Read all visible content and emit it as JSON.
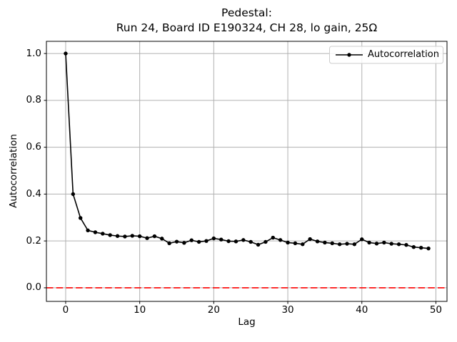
{
  "figure": {
    "title_line1": "Pedestal:",
    "title_line2": "Run 24, Board ID E190324, CH 28, lo gain, 25Ω",
    "xlabel": "Lag",
    "ylabel": "Autocorrelation",
    "legend_label": "Autocorrelation",
    "colors": {
      "line": "#000000",
      "zero_line": "#ff0000",
      "grid": "#b0b0b0",
      "frame": "#000000",
      "background": "#ffffff",
      "legend_border": "#cccccc",
      "text": "#000000"
    }
  },
  "chart_data": {
    "type": "line",
    "title": "Pedestal:\nRun 24, Board ID E190324, CH 28, lo gain, 25Ω",
    "xlabel": "Lag",
    "ylabel": "Autocorrelation",
    "legend": [
      "Autocorrelation"
    ],
    "legend_position": "upper right",
    "grid": true,
    "marker": "dot",
    "xlim": [
      -2.6,
      51.5
    ],
    "ylim": [
      -0.058,
      1.052
    ],
    "x_ticks": [
      0,
      10,
      20,
      30,
      40,
      50
    ],
    "y_ticks": [
      0.0,
      0.2,
      0.4,
      0.6,
      0.8,
      1.0
    ],
    "zero_line": {
      "y": 0.0,
      "style": "dashed",
      "color": "#ff0000"
    },
    "x": [
      0,
      1,
      2,
      3,
      4,
      5,
      6,
      7,
      8,
      9,
      10,
      11,
      12,
      13,
      14,
      15,
      16,
      17,
      18,
      19,
      20,
      21,
      22,
      23,
      24,
      25,
      26,
      27,
      28,
      29,
      30,
      31,
      32,
      33,
      34,
      35,
      36,
      37,
      38,
      39,
      40,
      41,
      42,
      43,
      44,
      45,
      46,
      47,
      48,
      49
    ],
    "series": [
      {
        "name": "Autocorrelation",
        "values": [
          1.0,
          0.4,
          0.298,
          0.245,
          0.237,
          0.231,
          0.225,
          0.221,
          0.219,
          0.222,
          0.22,
          0.212,
          0.22,
          0.21,
          0.19,
          0.197,
          0.192,
          0.203,
          0.196,
          0.2,
          0.211,
          0.206,
          0.199,
          0.198,
          0.204,
          0.196,
          0.184,
          0.196,
          0.214,
          0.204,
          0.193,
          0.19,
          0.186,
          0.208,
          0.198,
          0.193,
          0.19,
          0.186,
          0.188,
          0.186,
          0.207,
          0.193,
          0.189,
          0.193,
          0.188,
          0.186,
          0.183,
          0.174,
          0.171,
          0.168
        ]
      }
    ]
  }
}
